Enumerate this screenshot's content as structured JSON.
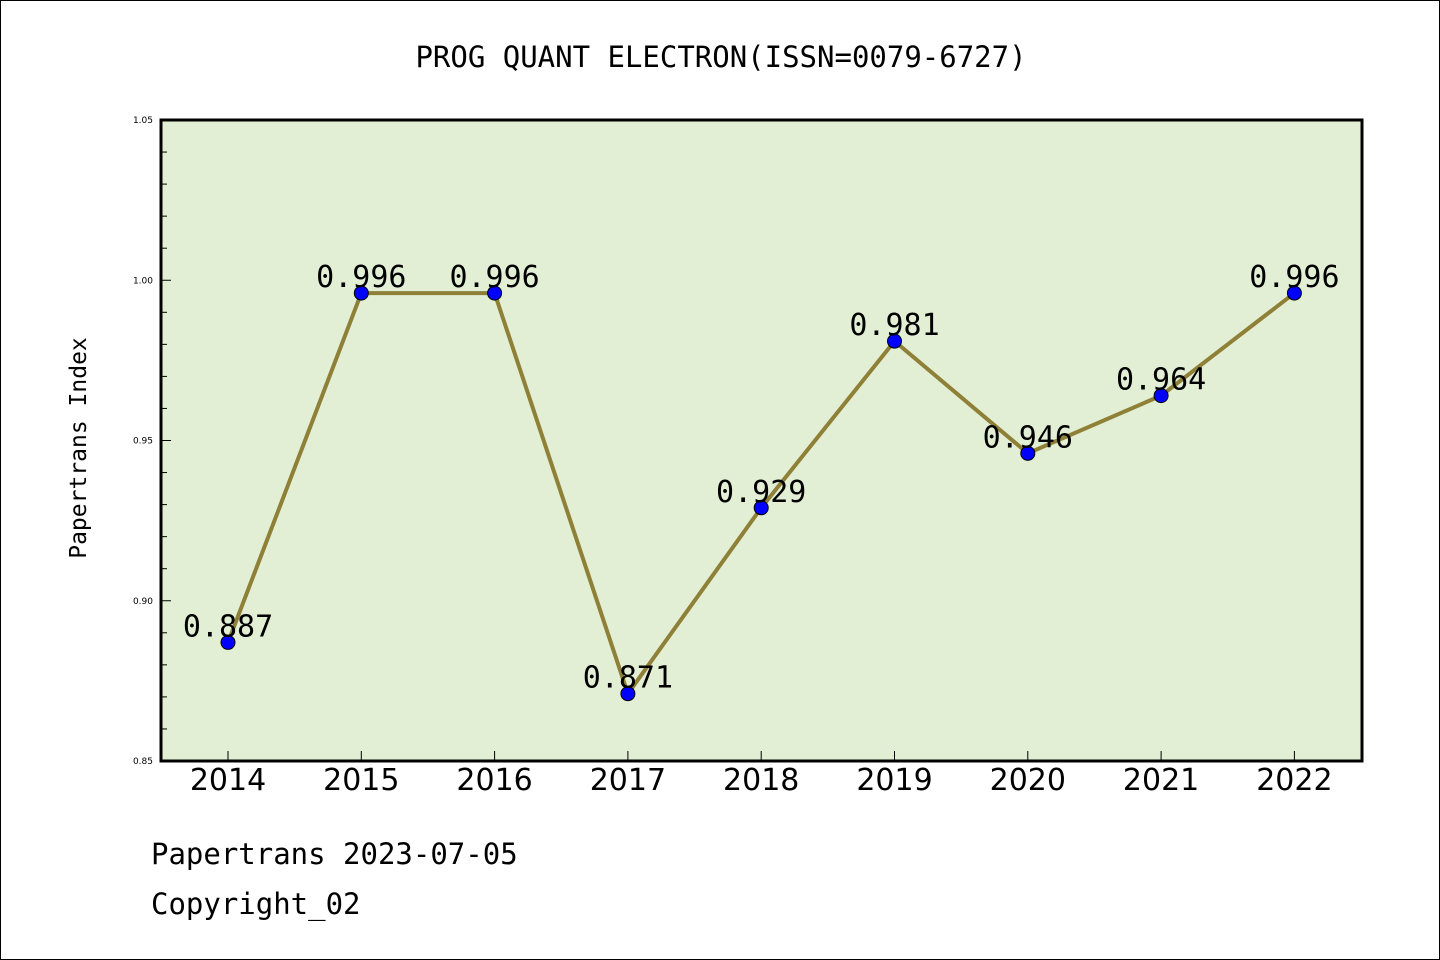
{
  "chart_data": {
    "type": "line",
    "title": "PROG QUANT ELECTRON(ISSN=0079-6727)",
    "xlabel": "",
    "ylabel": "Papertrans Index",
    "categories": [
      "2014",
      "2015",
      "2016",
      "2017",
      "2018",
      "2019",
      "2020",
      "2021",
      "2022"
    ],
    "series": [
      {
        "values": [
          0.887,
          0.996,
          0.996,
          0.871,
          0.929,
          0.981,
          0.946,
          0.964,
          0.996
        ],
        "labels": [
          "0.887",
          "0.996",
          "0.996",
          "0.871",
          "0.929",
          "0.981",
          "0.946",
          "0.964",
          "0.996"
        ]
      }
    ],
    "ylim": [
      0.85,
      1.05
    ],
    "yticks": [
      "0.85",
      "0.90",
      "0.95",
      "1.00",
      "1.05"
    ],
    "grid": false,
    "legend": "none",
    "colors": {
      "plot_background": "#e2efd4",
      "line": "#8f8038",
      "marker": "#0000ff"
    }
  },
  "footer": {
    "line1": "Papertrans 2023-07-05",
    "line2": "Copyright_02"
  }
}
